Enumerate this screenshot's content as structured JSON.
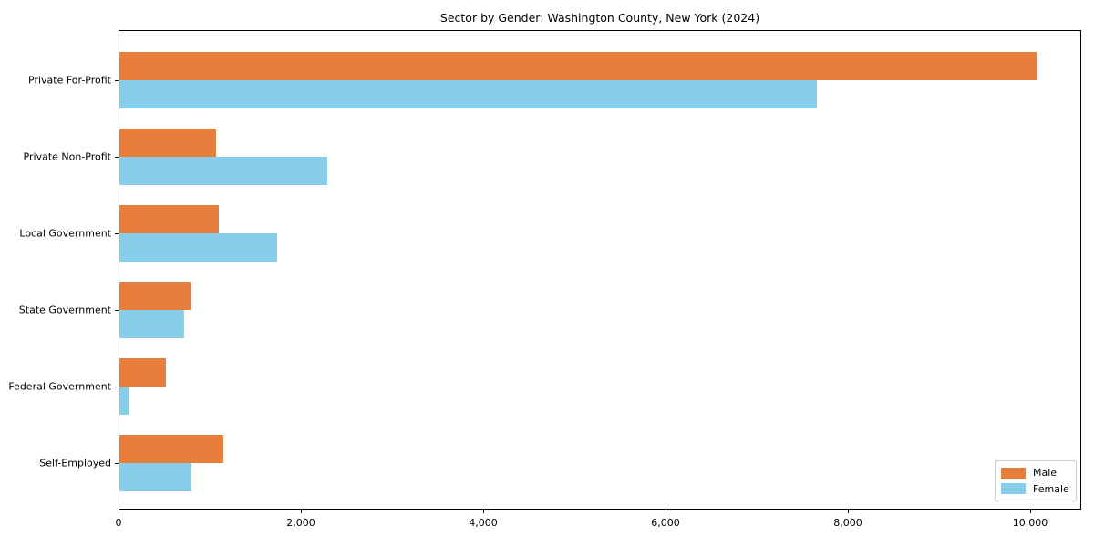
{
  "chart_data": {
    "type": "bar",
    "orientation": "horizontal",
    "title": "Sector by Gender: Washington County, New York (2024)",
    "categories": [
      "Private For-Profit",
      "Private Non-Profit",
      "Local Government",
      "State Government",
      "Federal Government",
      "Self-Employed"
    ],
    "series": [
      {
        "name": "Male",
        "color": "#e87e3c",
        "values": [
          10060,
          1060,
          1090,
          780,
          510,
          1140
        ]
      },
      {
        "name": "Female",
        "color": "#87ceeb",
        "values": [
          7650,
          2280,
          1730,
          710,
          110,
          790
        ]
      }
    ],
    "xlabel": "",
    "ylabel": "",
    "xlim": [
      0,
      10560
    ],
    "xticks": {
      "values": [
        0,
        2000,
        4000,
        6000,
        8000,
        10000
      ],
      "labels": [
        "0",
        "2,000",
        "4,000",
        "6,000",
        "8,000",
        "10,000"
      ]
    },
    "grid": false,
    "legend": {
      "position": "lower right",
      "entries": [
        "Male",
        "Female"
      ]
    }
  }
}
